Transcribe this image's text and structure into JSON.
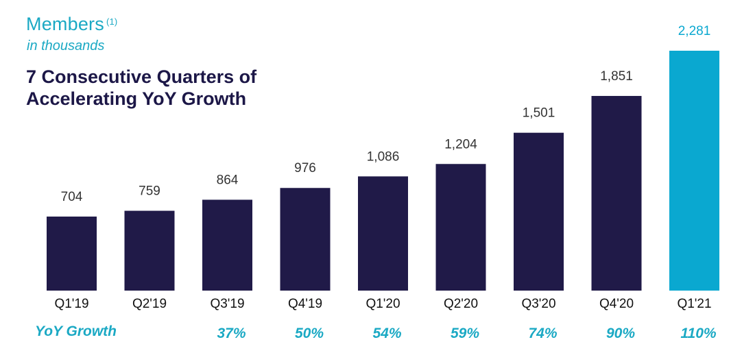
{
  "header": {
    "title": "Members",
    "title_note": "(1)",
    "subtitle": "in thousands",
    "headline": "7 Consecutive Quarters of Accelerating YoY Growth"
  },
  "growth_row": {
    "label": "YoY Growth"
  },
  "colors": {
    "bar": "#201a48",
    "highlight_bar": "#0aa8d0",
    "accent_text": "#1ba9c4",
    "headline": "#1c1747"
  },
  "chart_data": {
    "type": "bar",
    "title": "Members",
    "categories": [
      "Q1'19",
      "Q2'19",
      "Q3'19",
      "Q4'19",
      "Q1'20",
      "Q2'20",
      "Q3'20",
      "Q4'20",
      "Q1'21"
    ],
    "values": [
      704,
      759,
      864,
      976,
      1086,
      1204,
      1501,
      1851,
      2281
    ],
    "value_labels": [
      "704",
      "759",
      "864",
      "976",
      "1,086",
      "1,204",
      "1,501",
      "1,851",
      "2,281"
    ],
    "yoy_growth": [
      "",
      "",
      "37%",
      "50%",
      "54%",
      "59%",
      "74%",
      "90%",
      "110%"
    ],
    "highlight_index": 8,
    "ylim": [
      0,
      2281
    ],
    "grid": false,
    "legend": "none",
    "xlabel": "",
    "ylabel": ""
  }
}
